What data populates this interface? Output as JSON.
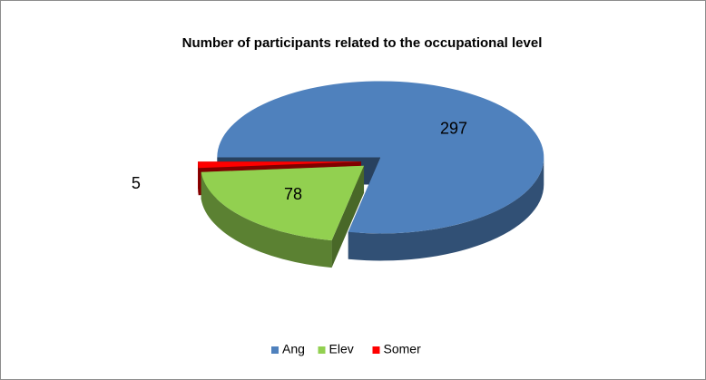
{
  "chart_data": {
    "type": "pie",
    "title": "Number of participants related to the occupational level",
    "categories": [
      "Ang",
      "Elev",
      "Somer"
    ],
    "values": [
      297,
      78,
      5
    ],
    "colors": [
      "#4f81bd",
      "#92d050",
      "#ff0000"
    ],
    "legend": "bottom"
  }
}
